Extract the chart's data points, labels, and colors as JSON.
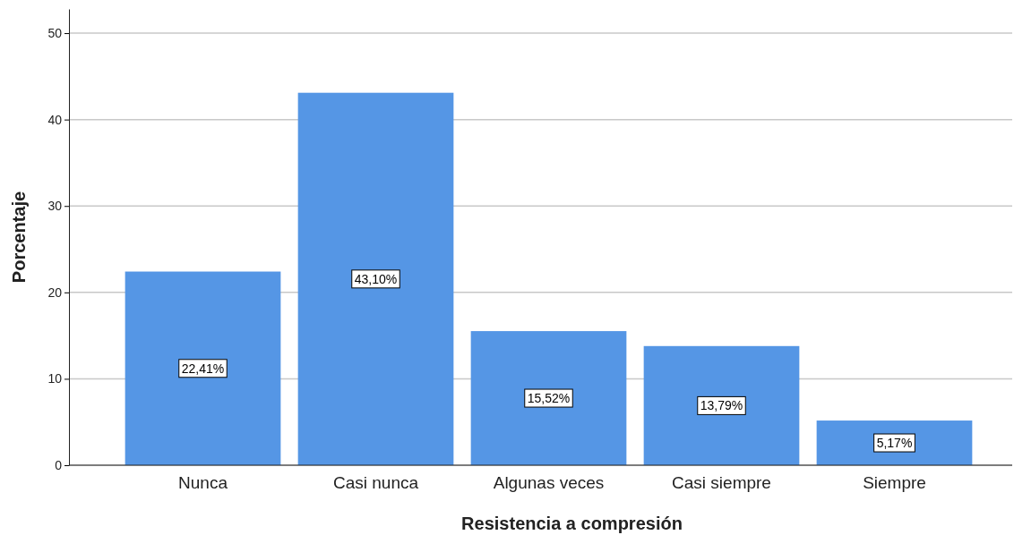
{
  "chart_data": {
    "type": "bar",
    "xlabel": "Resistencia a compresión",
    "ylabel": "Porcentaje",
    "categories": [
      "Nunca",
      "Casi nunca",
      "Algunas veces",
      "Casi siempre",
      "Siempre"
    ],
    "values": [
      22.41,
      43.1,
      15.52,
      13.79,
      5.17
    ],
    "value_labels": [
      "22,41%",
      "43,10%",
      "15,52%",
      "13,79%",
      "5,17%"
    ],
    "color": "#5596e5",
    "ylim": [
      0,
      52.8
    ],
    "yticks": [
      0,
      10,
      20,
      30,
      40,
      50
    ],
    "grid": "y"
  }
}
